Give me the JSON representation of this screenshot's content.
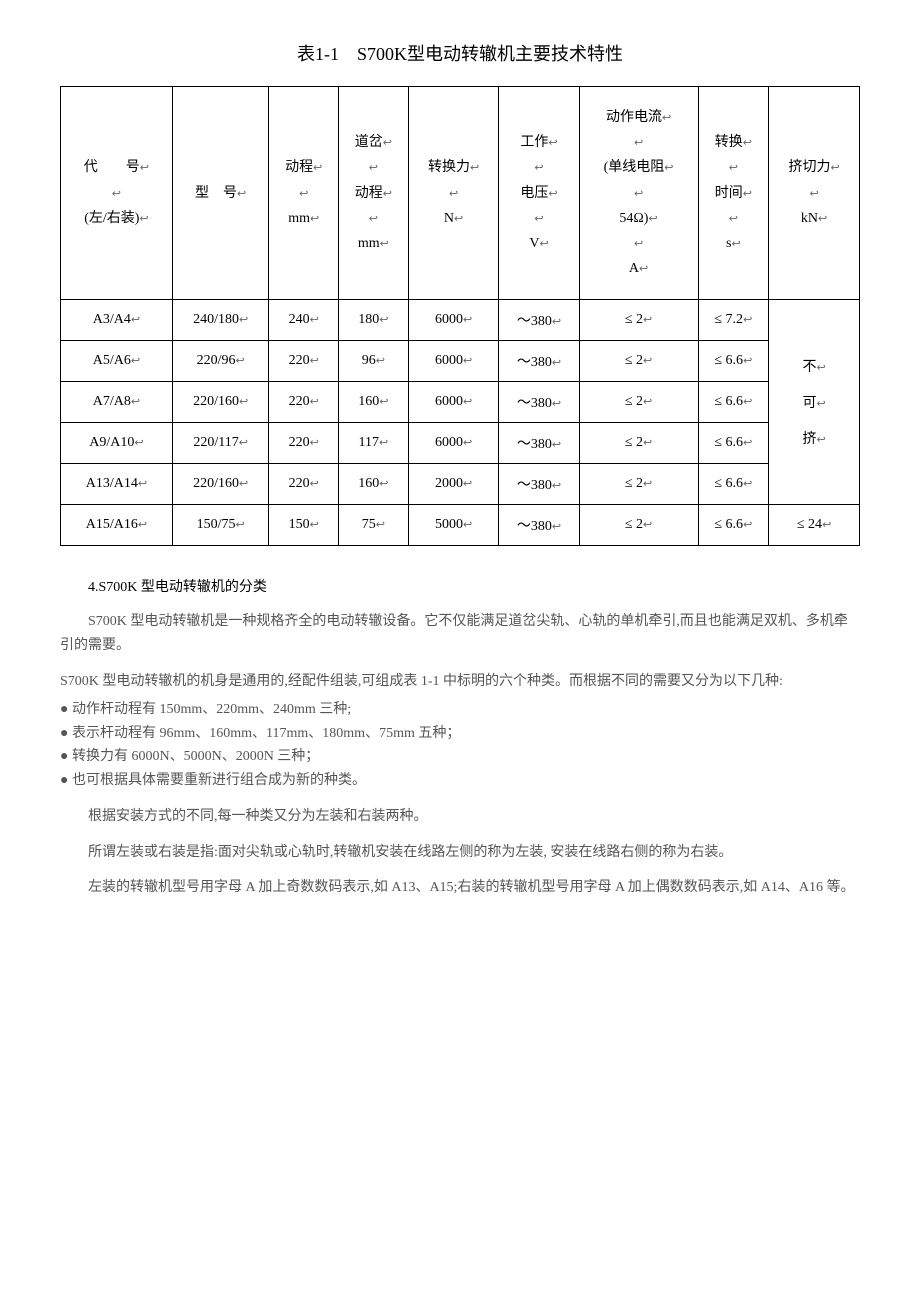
{
  "title": "表1-1　S700K型电动转辙机主要技术特性",
  "table": {
    "headers": {
      "col1": "代　　号\n\n(左/右装)",
      "col2": "型　号",
      "col3": "动程\n\nmm",
      "col4": "道岔\n\n动程\n\nmm",
      "col5": "转换力\n\nN",
      "col6": "工作\n\n电压\n\nV",
      "col7": "动作电流\n\n(单线电阻\n\n54Ω)\n\nA",
      "col8": "转换\n\n时间\n\ns",
      "col9": "挤切力\n\nkN"
    },
    "rows": [
      {
        "code": "A3/A4",
        "model": "240/180",
        "stroke": "240",
        "sw": "180",
        "force": "6000",
        "volt": "～380",
        "cur": "≤ 2",
        "time": "≤ 7.2"
      },
      {
        "code": "A5/A6",
        "model": "220/96",
        "stroke": "220",
        "sw": "96",
        "force": "6000",
        "volt": "～380",
        "cur": "≤ 2",
        "time": "≤ 6.6"
      },
      {
        "code": "A7/A8",
        "model": "220/160",
        "stroke": "220",
        "sw": "160",
        "force": "6000",
        "volt": "～380",
        "cur": "≤ 2",
        "time": "≤ 6.6"
      },
      {
        "code": "A9/A10",
        "model": "220/117",
        "stroke": "220",
        "sw": "117",
        "force": "6000",
        "volt": "～380",
        "cur": "≤ 2",
        "time": "≤ 6.6"
      },
      {
        "code": "A13/A14",
        "model": "220/160",
        "stroke": "220",
        "sw": "160",
        "force": "2000",
        "volt": "～380",
        "cur": "≤ 2",
        "time": "≤ 6.6"
      },
      {
        "code": "A15/A16",
        "model": "150/75",
        "stroke": "150",
        "sw": "75",
        "force": "5000",
        "volt": "～380",
        "cur": "≤ 2",
        "time": "≤ 6.6"
      }
    ],
    "col9_merged": [
      "不",
      "可",
      "挤"
    ],
    "col9_last": "≤ 24"
  },
  "section_title": "4.S700K 型电动转辙机的分类",
  "p1": "S700K 型电动转辙机是一种规格齐全的电动转辙设备。它不仅能满足道岔尖轨、心轨的单机牵引,而且也能满足双机、多机牵引的需要。",
  "p2": "S700K 型电动转辙机的机身是通用的,经配件组装,可组成表 1-1 中标明的六个种类。而根据不同的需要又分为以下几种:",
  "bullets": [
    "动作杆动程有 150mm、220mm、240mm 三种;",
    "表示杆动程有 96mm、160mm、117mm、180mm、75mm 五种；",
    "转换力有 6000N、5000N、2000N 三种；",
    "也可根据具体需要重新进行组合成为新的种类。"
  ],
  "p3": "根据安装方式的不同,每一种类又分为左装和右装两种。",
  "p4": "所谓左装或右装是指:面对尖轨或心轨时,转辙机安装在线路左侧的称为左装, 安装在线路右侧的称为右装。",
  "p5": "左装的转辙机型号用字母 A 加上奇数数码表示,如 A13、A15;右装的转辙机型号用字母 A 加上偶数数码表示,如 A14、A16 等。"
}
